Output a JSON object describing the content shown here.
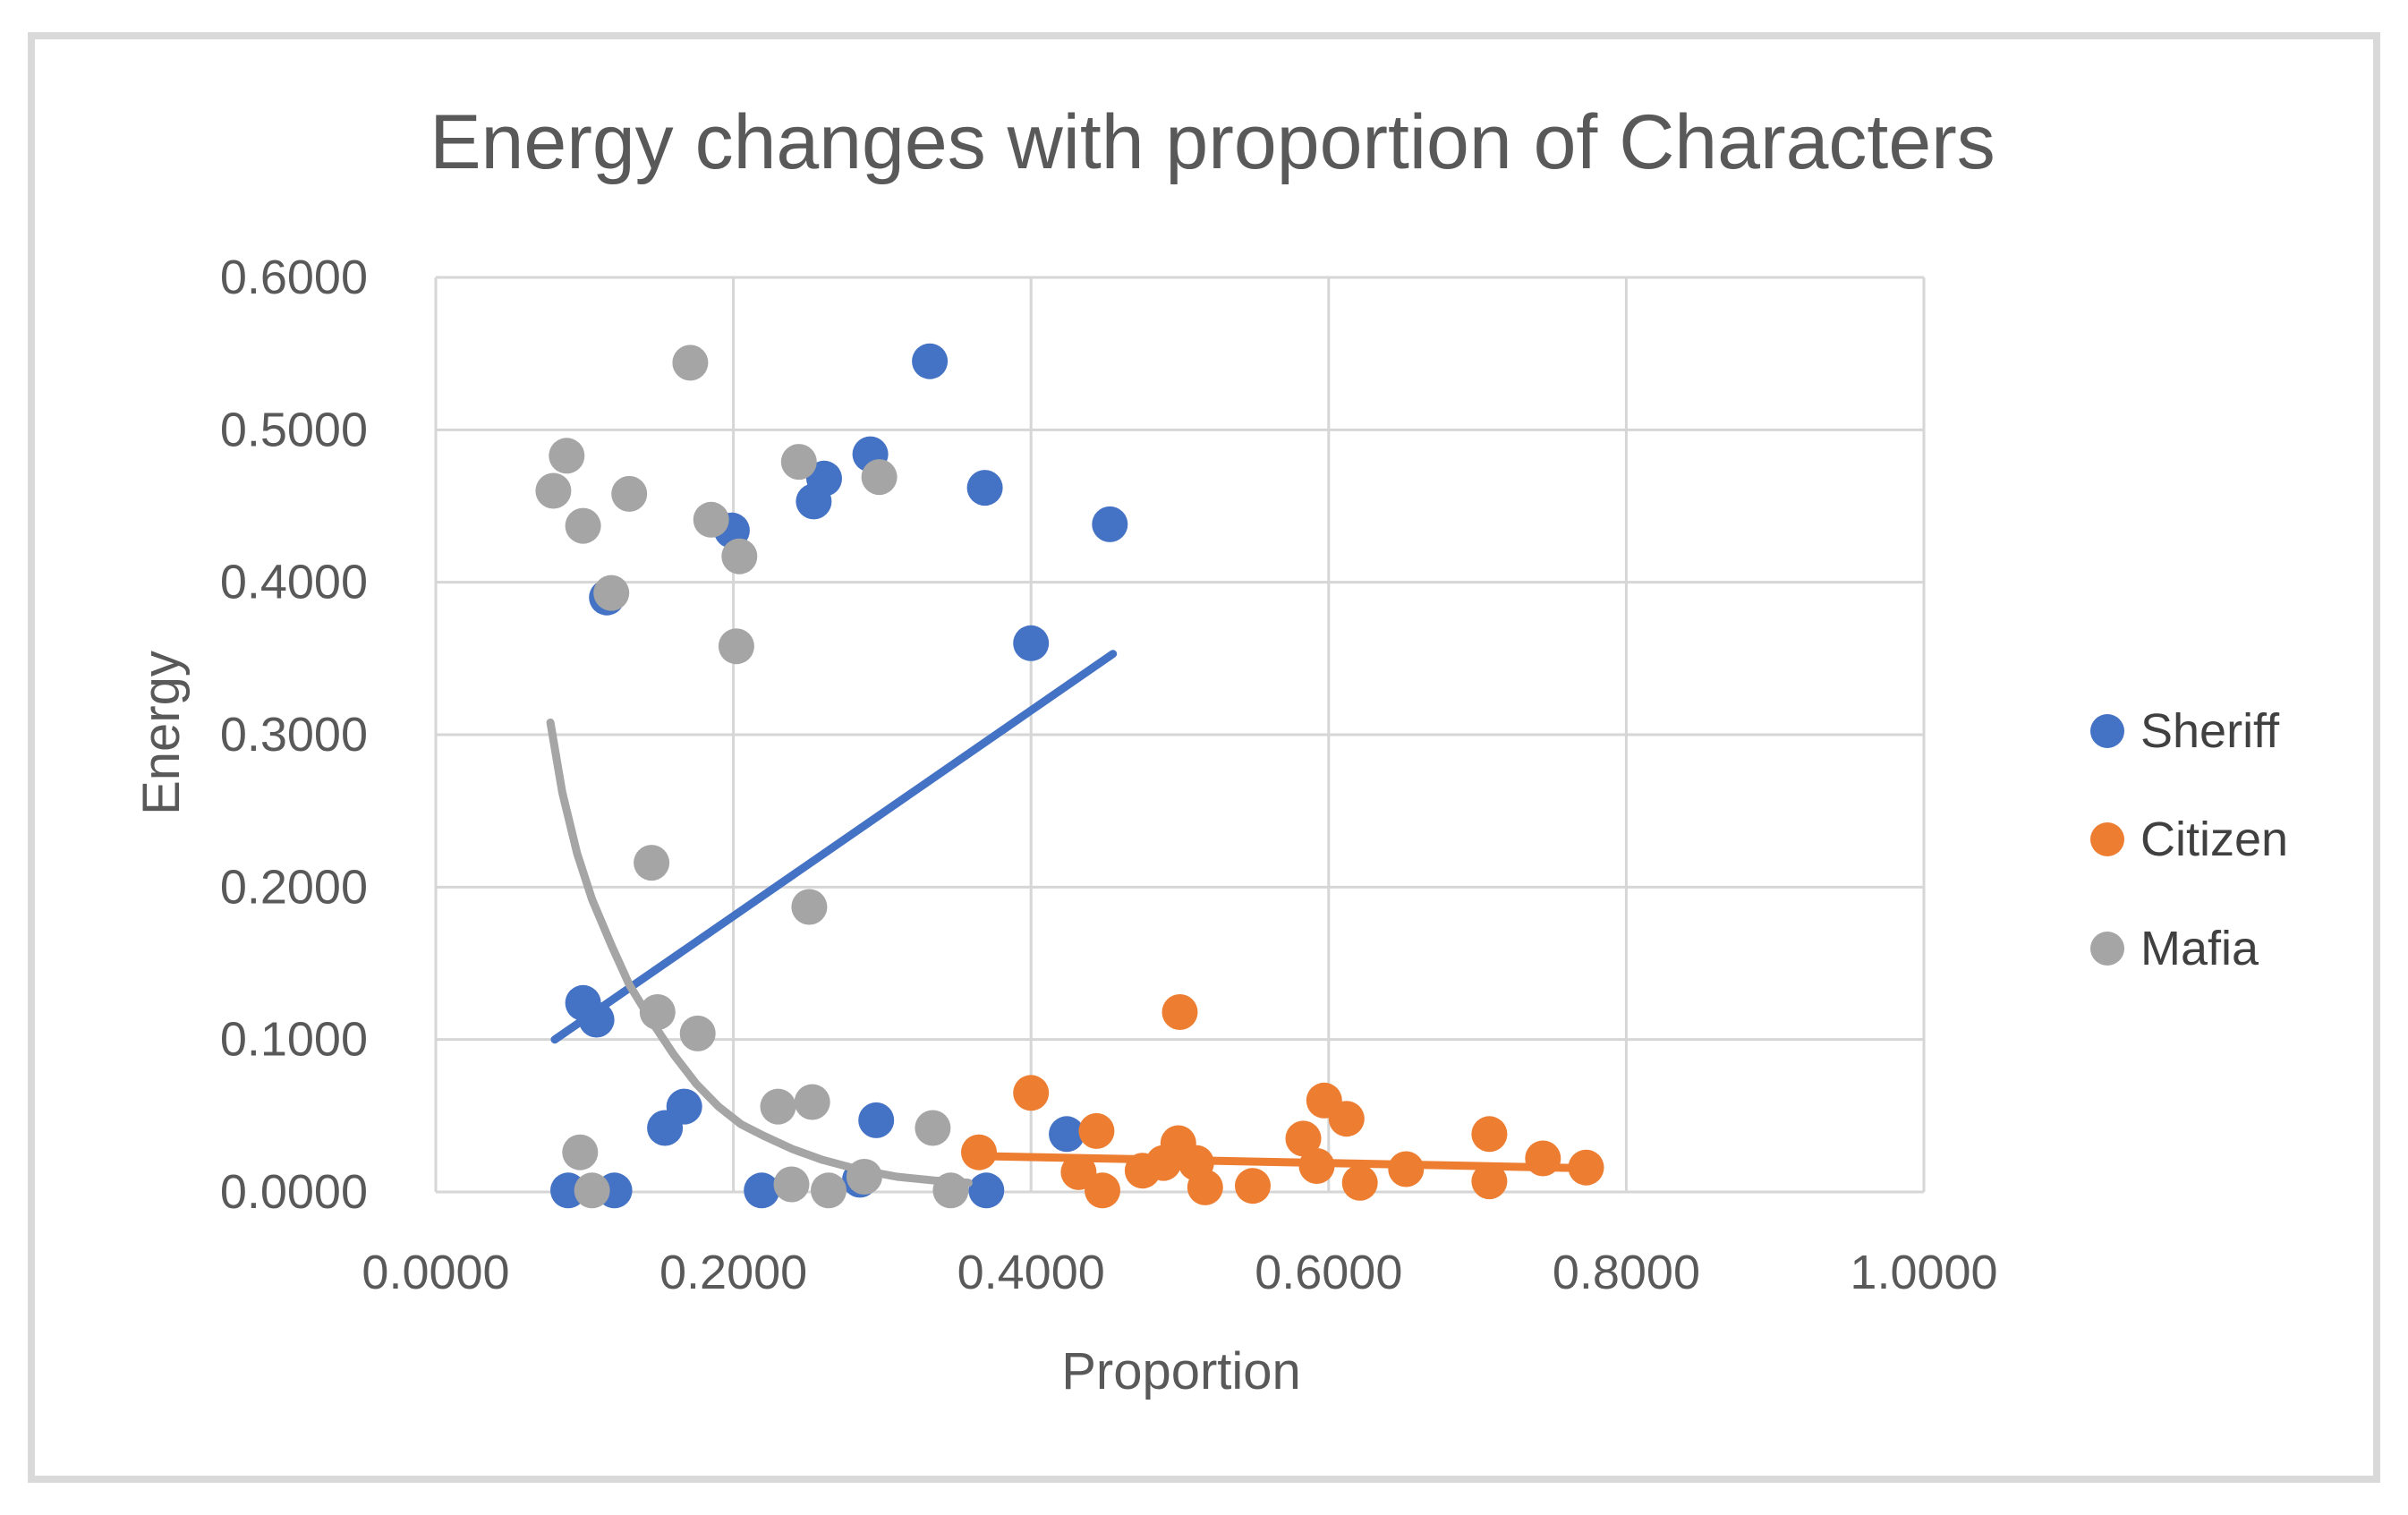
{
  "figure": {
    "border_color": "#D9D9D9",
    "background": "#FFFFFF",
    "gridline_color": "#D6D6D6",
    "text_color": "#595959"
  },
  "chart_data": {
    "type": "scatter",
    "title": "Energy changes with proportion of Characters",
    "xlabel": "Proportion",
    "ylabel": "Energy",
    "xlim": [
      0.0,
      1.0
    ],
    "ylim": [
      0.0,
      0.6
    ],
    "grid": true,
    "legend_position": "right",
    "x_ticks": [
      {
        "value": 0.0,
        "label": "0.0000"
      },
      {
        "value": 0.2,
        "label": "0.2000"
      },
      {
        "value": 0.4,
        "label": "0.4000"
      },
      {
        "value": 0.6,
        "label": "0.6000"
      },
      {
        "value": 0.8,
        "label": "0.8000"
      },
      {
        "value": 1.0,
        "label": "1.0000"
      }
    ],
    "y_ticks": [
      {
        "value": 0.0,
        "label": "0.0000"
      },
      {
        "value": 0.1,
        "label": "0.1000"
      },
      {
        "value": 0.2,
        "label": "0.2000"
      },
      {
        "value": 0.3,
        "label": "0.3000"
      },
      {
        "value": 0.4,
        "label": "0.4000"
      },
      {
        "value": 0.5,
        "label": "0.5000"
      },
      {
        "value": 0.6,
        "label": "0.6000"
      }
    ],
    "series": [
      {
        "name": "Sheriff",
        "color": "#4472C4",
        "marker_radius": 20,
        "points": [
          [
            0.089,
            0.001
          ],
          [
            0.099,
            0.124
          ],
          [
            0.108,
            0.113
          ],
          [
            0.115,
            0.39
          ],
          [
            0.12,
            0.001
          ],
          [
            0.154,
            0.042
          ],
          [
            0.167,
            0.056
          ],
          [
            0.199,
            0.434
          ],
          [
            0.219,
            0.001
          ],
          [
            0.254,
            0.453
          ],
          [
            0.261,
            0.468
          ],
          [
            0.285,
            0.008
          ],
          [
            0.292,
            0.484
          ],
          [
            0.296,
            0.047
          ],
          [
            0.332,
            0.545
          ],
          [
            0.369,
            0.462
          ],
          [
            0.37,
            0.001
          ],
          [
            0.4,
            0.36
          ],
          [
            0.424,
            0.038
          ],
          [
            0.453,
            0.438
          ]
        ],
        "trendline": {
          "type": "linear",
          "from": [
            0.08,
            0.1
          ],
          "to": [
            0.455,
            0.353
          ]
        }
      },
      {
        "name": "Citizen",
        "color": "#ED7D31",
        "marker_radius": 20,
        "points": [
          [
            0.365,
            0.026
          ],
          [
            0.4,
            0.065
          ],
          [
            0.432,
            0.013
          ],
          [
            0.444,
            0.04
          ],
          [
            0.448,
            0.001
          ],
          [
            0.475,
            0.014
          ],
          [
            0.489,
            0.019
          ],
          [
            0.499,
            0.032
          ],
          [
            0.5,
            0.118
          ],
          [
            0.511,
            0.019
          ],
          [
            0.517,
            0.003
          ],
          [
            0.549,
            0.004
          ],
          [
            0.583,
            0.035
          ],
          [
            0.592,
            0.017
          ],
          [
            0.597,
            0.06
          ],
          [
            0.612,
            0.048
          ],
          [
            0.621,
            0.006
          ],
          [
            0.652,
            0.015
          ],
          [
            0.708,
            0.038
          ],
          [
            0.708,
            0.007
          ],
          [
            0.744,
            0.022
          ],
          [
            0.773,
            0.016
          ]
        ],
        "trendline": {
          "type": "linear",
          "from": [
            0.368,
            0.0235
          ],
          "to": [
            0.778,
            0.0155
          ]
        }
      },
      {
        "name": "Mafia",
        "color": "#A5A5A5",
        "marker_radius": 20,
        "points": [
          [
            0.079,
            0.46
          ],
          [
            0.088,
            0.483
          ],
          [
            0.097,
            0.026
          ],
          [
            0.099,
            0.437
          ],
          [
            0.105,
            0.001
          ],
          [
            0.118,
            0.393
          ],
          [
            0.13,
            0.458
          ],
          [
            0.145,
            0.216
          ],
          [
            0.149,
            0.118
          ],
          [
            0.171,
            0.544
          ],
          [
            0.176,
            0.104
          ],
          [
            0.185,
            0.441
          ],
          [
            0.202,
            0.358
          ],
          [
            0.204,
            0.417
          ],
          [
            0.23,
            0.056
          ],
          [
            0.239,
            0.005
          ],
          [
            0.244,
            0.479
          ],
          [
            0.251,
            0.187
          ],
          [
            0.253,
            0.059
          ],
          [
            0.264,
            0.001
          ],
          [
            0.288,
            0.01
          ],
          [
            0.298,
            0.469
          ],
          [
            0.334,
            0.042
          ],
          [
            0.346,
            0.001
          ]
        ],
        "trendline": {
          "type": "curve",
          "points": [
            [
              0.077,
              0.308
            ],
            [
              0.085,
              0.262
            ],
            [
              0.095,
              0.222
            ],
            [
              0.105,
              0.192
            ],
            [
              0.118,
              0.162
            ],
            [
              0.13,
              0.136
            ],
            [
              0.145,
              0.112
            ],
            [
              0.16,
              0.09
            ],
            [
              0.175,
              0.071
            ],
            [
              0.19,
              0.056
            ],
            [
              0.205,
              0.0445
            ],
            [
              0.22,
              0.037
            ],
            [
              0.24,
              0.028
            ],
            [
              0.26,
              0.021
            ],
            [
              0.285,
              0.0145
            ],
            [
              0.31,
              0.01
            ],
            [
              0.335,
              0.0075
            ],
            [
              0.358,
              0.006
            ]
          ]
        }
      }
    ]
  }
}
